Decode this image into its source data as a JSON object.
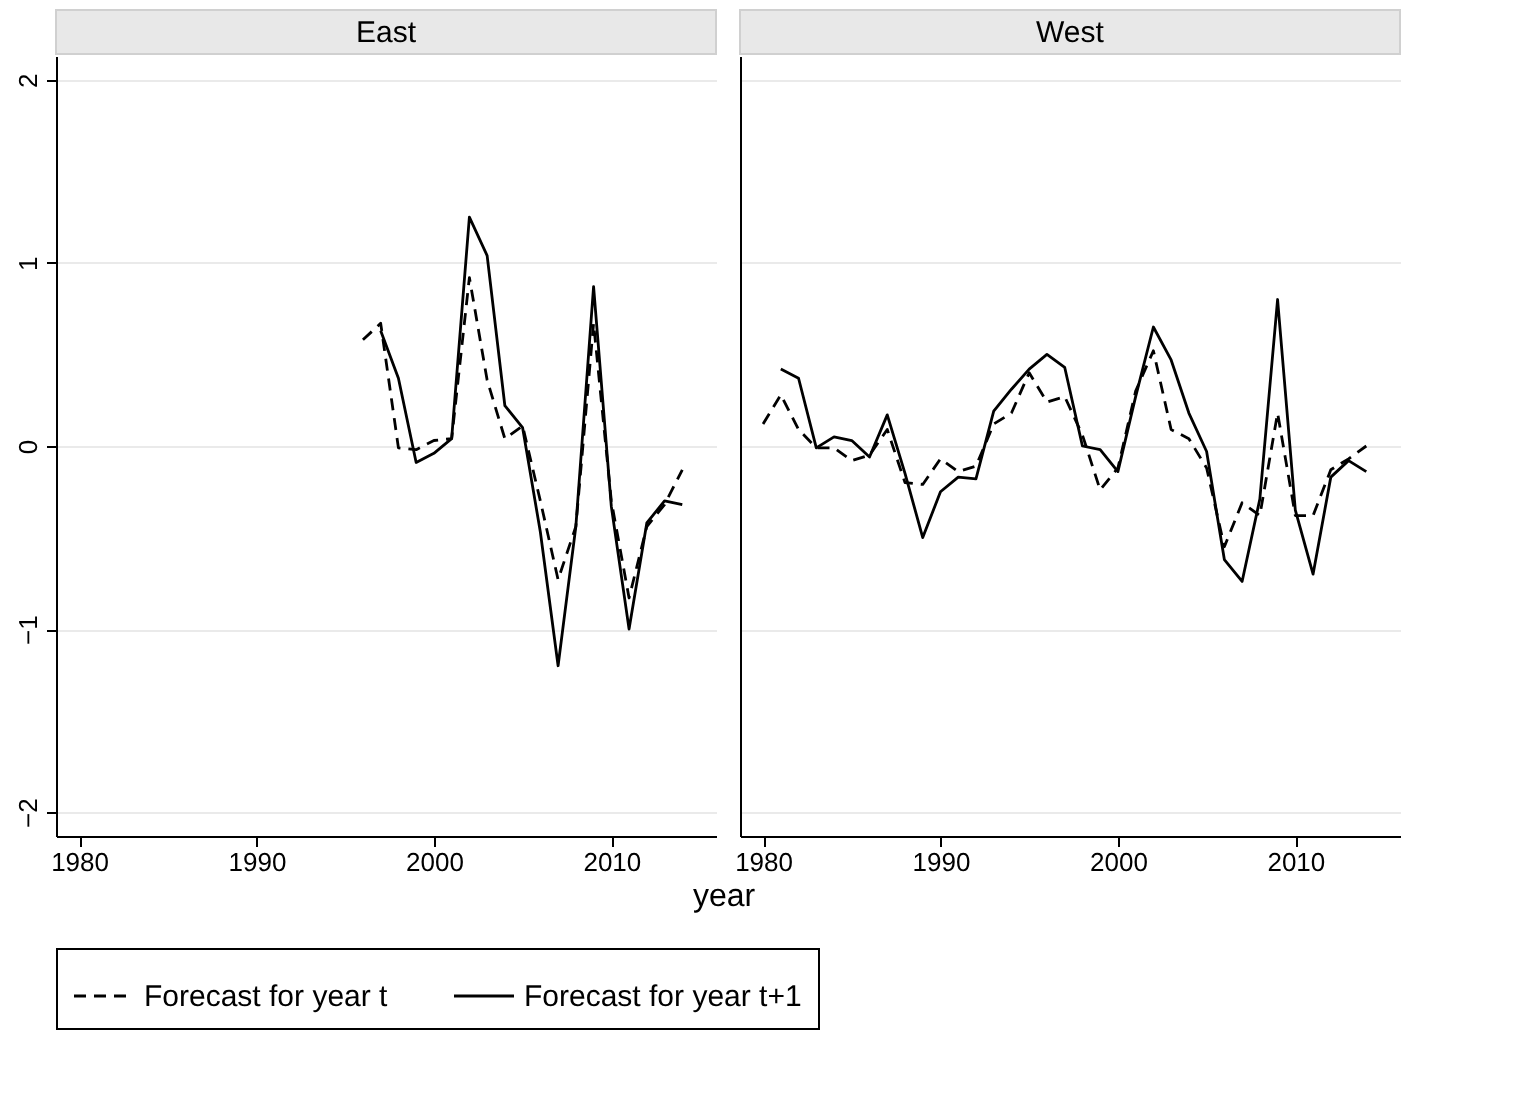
{
  "chart_data": [
    {
      "type": "line",
      "title": "East",
      "xlabel": "year",
      "xlim": [
        1978.7,
        2015.9
      ],
      "xticks": [
        1980,
        1990,
        2000,
        2010
      ],
      "ylim": [
        -2.13,
        2.13
      ],
      "yticks": [
        -2,
        -1,
        0,
        1,
        2
      ],
      "grid": "y",
      "legend": "bottom",
      "series": [
        {
          "name": "Forecast for year t",
          "color": "#000000",
          "line_style": "dashed",
          "x": [
            1996,
            1997,
            1998,
            1999,
            2000,
            2001,
            2002,
            2003,
            2004,
            2005,
            2006,
            2007,
            2008,
            2009,
            2010,
            2011,
            2012,
            2013,
            2014
          ],
          "values": [
            0.58,
            0.67,
            -0.01,
            -0.02,
            0.03,
            0.04,
            0.92,
            0.36,
            0.04,
            0.11,
            -0.3,
            -0.73,
            -0.44,
            0.67,
            -0.3,
            -0.83,
            -0.44,
            -0.32,
            -0.13
          ]
        },
        {
          "name": "Forecast for year t+1",
          "color": "#000000",
          "line_style": "solid",
          "x": [
            1997,
            1998,
            1999,
            2000,
            2001,
            2002,
            2003,
            2004,
            2005,
            2006,
            2007,
            2008,
            2009,
            2010,
            2011,
            2012,
            2013,
            2014
          ],
          "values": [
            0.63,
            0.37,
            -0.09,
            -0.04,
            0.04,
            1.25,
            1.04,
            0.22,
            0.1,
            -0.47,
            -1.2,
            -0.44,
            0.87,
            -0.33,
            -1.0,
            -0.42,
            -0.3,
            -0.32
          ]
        }
      ]
    },
    {
      "type": "line",
      "title": "West",
      "xlim": [
        1978.7,
        2015.9
      ],
      "xticks": [
        1980,
        1990,
        2000,
        2010
      ],
      "ylim": [
        -2.13,
        2.13
      ],
      "yticks": [
        -2,
        -1,
        0,
        1,
        2
      ],
      "grid": "y",
      "legend": "bottom",
      "tick_labels": "x",
      "series": [
        {
          "name": "Forecast for year t",
          "color": "#000000",
          "line_style": "dashed",
          "x": [
            1980,
            1981,
            1982,
            1983,
            1984,
            1985,
            1986,
            1987,
            1988,
            1989,
            1990,
            1991,
            1992,
            1993,
            1994,
            1995,
            1996,
            1997,
            1998,
            1999,
            2000,
            2001,
            2002,
            2003,
            2004,
            2005,
            2006,
            2007,
            2008,
            2009,
            2010,
            2011,
            2012,
            2013,
            2014
          ],
          "values": [
            0.12,
            0.28,
            0.09,
            -0.01,
            -0.01,
            -0.08,
            -0.05,
            0.09,
            -0.2,
            -0.21,
            -0.07,
            -0.14,
            -0.11,
            0.12,
            0.18,
            0.4,
            0.24,
            0.27,
            0.06,
            -0.24,
            -0.12,
            0.3,
            0.52,
            0.09,
            0.04,
            -0.12,
            -0.55,
            -0.31,
            -0.38,
            0.18,
            -0.38,
            -0.38,
            -0.13,
            -0.07,
            0.0
          ]
        },
        {
          "name": "Forecast for year t+1",
          "color": "#000000",
          "line_style": "solid",
          "x": [
            1981,
            1982,
            1983,
            1984,
            1985,
            1986,
            1987,
            1988,
            1989,
            1990,
            1991,
            1992,
            1993,
            1994,
            1995,
            1996,
            1997,
            1998,
            1999,
            2000,
            2001,
            2002,
            2003,
            2004,
            2005,
            2006,
            2007,
            2008,
            2009,
            2010,
            2011,
            2012,
            2013,
            2014
          ],
          "values": [
            0.42,
            0.37,
            -0.01,
            0.05,
            0.03,
            -0.06,
            0.17,
            -0.15,
            -0.5,
            -0.25,
            -0.17,
            -0.18,
            0.19,
            0.31,
            0.42,
            0.5,
            0.43,
            0.0,
            -0.02,
            -0.14,
            0.27,
            0.65,
            0.47,
            0.18,
            -0.03,
            -0.62,
            -0.74,
            -0.29,
            0.8,
            -0.35,
            -0.7,
            -0.17,
            -0.08,
            -0.14
          ]
        }
      ]
    }
  ]
}
